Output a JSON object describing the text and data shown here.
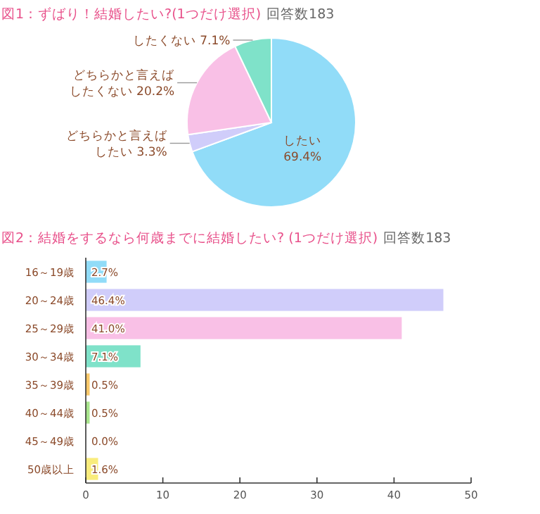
{
  "chart_data": [
    {
      "type": "pie",
      "title": "図1：ずばり！結婚したい?(1つだけ選択)",
      "subtitle": "回答数183",
      "categories": [
        "したい",
        "どちらかと言えばしたい",
        "どちらかと言えばしたくない",
        "したくない"
      ],
      "values": [
        69.4,
        3.3,
        20.2,
        7.1
      ],
      "value_labels": [
        "69.4%",
        "3.3%",
        "20.2%",
        "7.1%"
      ],
      "colors": [
        "#91dcf8",
        "#d0cdfa",
        "#f9c0e6",
        "#7fe2c9"
      ]
    },
    {
      "type": "bar",
      "orientation": "horizontal",
      "title": "図2：結婚をするなら何歳までに結婚したい? (1つだけ選択)",
      "subtitle": "回答数183",
      "categories": [
        "16～19歳",
        "20～24歳",
        "25～29歳",
        "30～34歳",
        "35～39歳",
        "40～44歳",
        "45～49歳",
        "50歳以上"
      ],
      "values": [
        2.7,
        46.4,
        41.0,
        7.1,
        0.5,
        0.5,
        0.0,
        1.6
      ],
      "value_labels": [
        "2.7%",
        "46.4%",
        "41.0%",
        "7.1%",
        "0.5%",
        "0.5%",
        "0.0%",
        "1.6%"
      ],
      "colors": [
        "#91dcf8",
        "#d0cdfa",
        "#f9c0e6",
        "#7fe2c9",
        "#f9c86a",
        "#a8e58c",
        "#c9c9c9",
        "#f9ec7c"
      ],
      "xlim": [
        0,
        50
      ],
      "xticks": [
        0,
        10,
        20,
        30,
        40,
        50
      ]
    }
  ]
}
